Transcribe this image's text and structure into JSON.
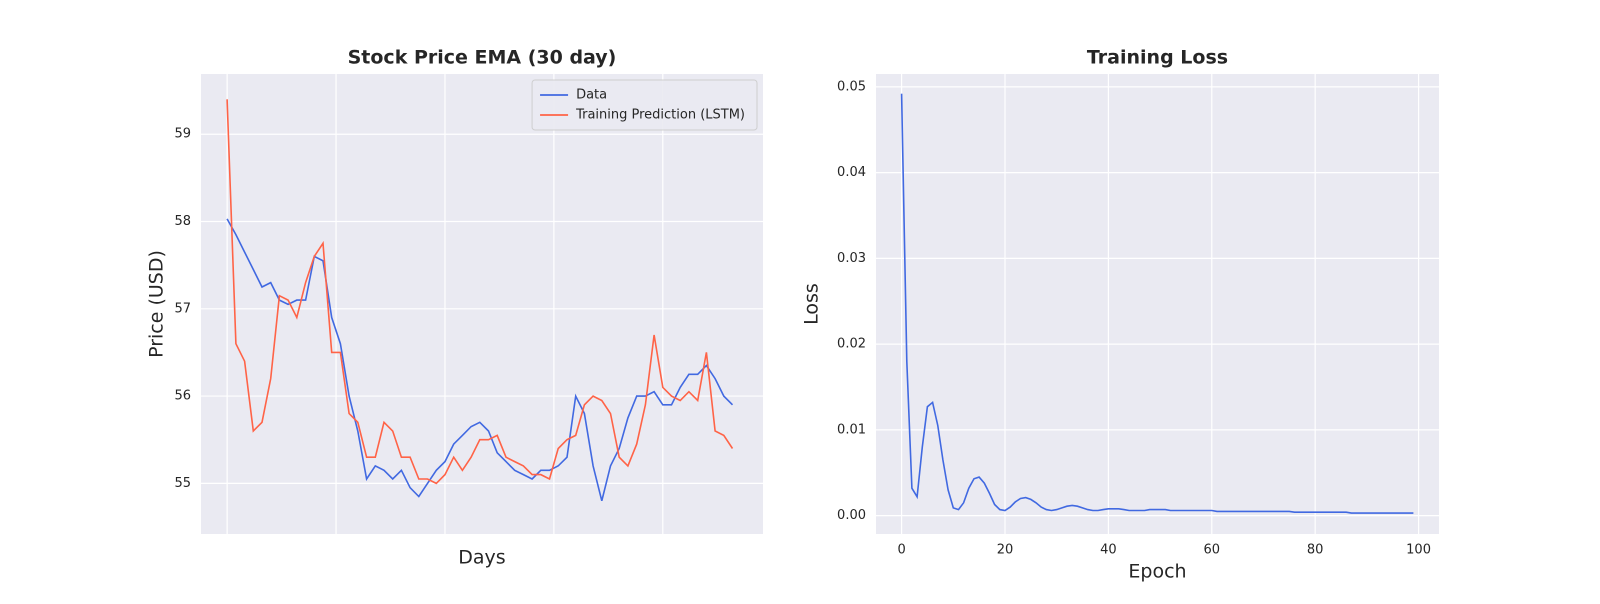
{
  "chart_data": [
    {
      "type": "line",
      "title": "Stock Price EMA (30 day)",
      "xlabel": "Days",
      "ylabel": "Price (USD)",
      "x": [
        0,
        4,
        8,
        12,
        16,
        20,
        24,
        28,
        32,
        36,
        40,
        44,
        48,
        52,
        56,
        60,
        64,
        68,
        72,
        76,
        80,
        84,
        88,
        92,
        96,
        100,
        104,
        108,
        112,
        116,
        120,
        124,
        128,
        132,
        136,
        140,
        144,
        148,
        152,
        156,
        160,
        164,
        168,
        172,
        176,
        180,
        184,
        188,
        192,
        196,
        200,
        204,
        208,
        212,
        216,
        220,
        224,
        228,
        232
      ],
      "series": [
        {
          "name": "Data",
          "color": "#4169e1",
          "values": [
            58.03,
            57.85,
            57.65,
            57.45,
            57.25,
            57.3,
            57.1,
            57.05,
            57.1,
            57.1,
            57.6,
            57.55,
            56.9,
            56.6,
            56.0,
            55.6,
            55.05,
            55.2,
            55.15,
            55.05,
            55.15,
            54.95,
            54.85,
            55.0,
            55.15,
            55.25,
            55.45,
            55.55,
            55.65,
            55.7,
            55.6,
            55.35,
            55.25,
            55.15,
            55.1,
            55.05,
            55.15,
            55.15,
            55.2,
            55.3,
            56.0,
            55.8,
            55.2,
            54.8,
            55.2,
            55.4,
            55.75,
            56.0,
            56.0,
            56.05,
            55.9,
            55.9,
            56.1,
            56.25,
            56.25,
            56.35,
            56.2,
            56.0,
            55.9
          ]
        },
        {
          "name": "Training Prediction (LSTM)",
          "color": "#ff6347",
          "values": [
            59.4,
            56.6,
            56.4,
            55.6,
            55.7,
            56.2,
            57.15,
            57.1,
            56.9,
            57.3,
            57.6,
            57.75,
            56.5,
            56.5,
            55.8,
            55.7,
            55.3,
            55.3,
            55.7,
            55.6,
            55.3,
            55.3,
            55.05,
            55.05,
            55.0,
            55.1,
            55.3,
            55.15,
            55.3,
            55.5,
            55.5,
            55.55,
            55.3,
            55.25,
            55.2,
            55.1,
            55.1,
            55.05,
            55.4,
            55.5,
            55.55,
            55.9,
            56.0,
            55.95,
            55.8,
            55.3,
            55.2,
            55.45,
            55.9,
            56.7,
            56.1,
            56.0,
            55.95,
            56.05,
            55.95,
            56.5,
            55.6,
            55.55,
            55.4
          ]
        }
      ],
      "xlim": [
        -12,
        246
      ],
      "xticks": [
        0,
        50,
        100,
        150,
        200
      ],
      "xtick_labels": false,
      "ylim": [
        54.42,
        59.69
      ],
      "yticks": [
        55,
        56,
        57,
        58,
        59
      ],
      "grid": true,
      "legend": "upper right"
    },
    {
      "type": "line",
      "title": "Training Loss",
      "xlabel": "Epoch",
      "ylabel": "Loss",
      "x": [
        0,
        1,
        2,
        3,
        4,
        5,
        6,
        7,
        8,
        9,
        10,
        11,
        12,
        13,
        14,
        15,
        16,
        17,
        18,
        19,
        20,
        21,
        22,
        23,
        24,
        25,
        26,
        27,
        28,
        29,
        30,
        31,
        32,
        33,
        34,
        35,
        36,
        37,
        38,
        39,
        40,
        41,
        42,
        43,
        44,
        45,
        46,
        47,
        48,
        49,
        50,
        51,
        52,
        53,
        54,
        55,
        56,
        57,
        58,
        59,
        60,
        61,
        62,
        63,
        64,
        65,
        66,
        67,
        68,
        69,
        70,
        71,
        72,
        73,
        74,
        75,
        76,
        77,
        78,
        79,
        80,
        81,
        82,
        83,
        84,
        85,
        86,
        87,
        88,
        89,
        90,
        91,
        92,
        93,
        94,
        95,
        96,
        97,
        98,
        99
      ],
      "series": [
        {
          "name": "Loss",
          "color": "#4169e1",
          "values": [
            0.0492,
            0.018,
            0.0032,
            0.0022,
            0.008,
            0.0127,
            0.0132,
            0.0105,
            0.0065,
            0.003,
            0.0009,
            0.0007,
            0.0015,
            0.0032,
            0.0043,
            0.0045,
            0.0038,
            0.0026,
            0.0013,
            0.0007,
            0.0006,
            0.001,
            0.0016,
            0.002,
            0.0021,
            0.0019,
            0.0015,
            0.001,
            0.0007,
            0.0006,
            0.0007,
            0.0009,
            0.0011,
            0.0012,
            0.0011,
            0.0009,
            0.0007,
            0.0006,
            0.0006,
            0.0007,
            0.0008,
            0.0008,
            0.0008,
            0.0007,
            0.0006,
            0.0006,
            0.0006,
            0.0006,
            0.0007,
            0.0007,
            0.0007,
            0.0007,
            0.0006,
            0.0006,
            0.0006,
            0.0006,
            0.0006,
            0.0006,
            0.0006,
            0.0006,
            0.0006,
            0.0005,
            0.0005,
            0.0005,
            0.0005,
            0.0005,
            0.0005,
            0.0005,
            0.0005,
            0.0005,
            0.0005,
            0.0005,
            0.0005,
            0.0005,
            0.0005,
            0.0005,
            0.0004,
            0.0004,
            0.0004,
            0.0004,
            0.0004,
            0.0004,
            0.0004,
            0.0004,
            0.0004,
            0.0004,
            0.0004,
            0.0003,
            0.0003,
            0.0003,
            0.0003,
            0.0003,
            0.0003,
            0.0003,
            0.0003,
            0.0003,
            0.0003,
            0.0003,
            0.0003,
            0.0003
          ]
        }
      ],
      "xlim": [
        -4.95,
        103.95
      ],
      "xticks": [
        0,
        20,
        40,
        60,
        80,
        100
      ],
      "xtick_labels": true,
      "ylim": [
        -0.00214,
        0.0515
      ],
      "yticks": [
        {
          "value": 0,
          "label": "0.00"
        },
        0.01,
        0.02,
        0.03,
        0.04,
        0.05
      ],
      "grid": true
    }
  ]
}
